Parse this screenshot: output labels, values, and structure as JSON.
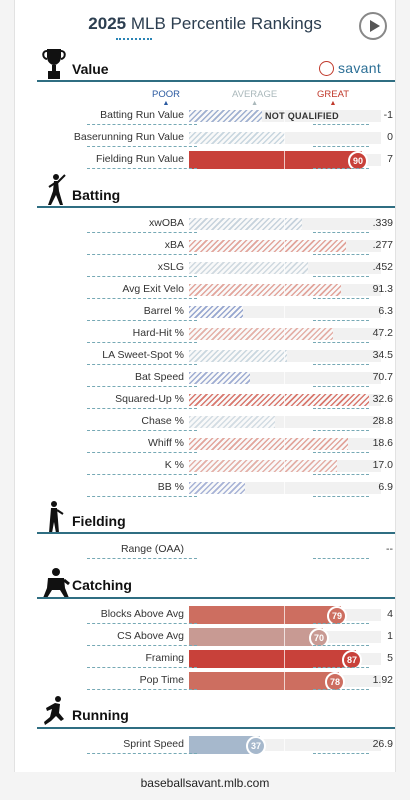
{
  "header": {
    "year": "2025",
    "title": "MLB Percentile Rankings",
    "play_icon": "play-circle-icon"
  },
  "brand": {
    "text": "savant",
    "logo": "baseball-icon"
  },
  "scale": {
    "poor": "POOR",
    "average": "AVERAGE",
    "great": "GREAT",
    "colors": {
      "poor": "#2b5aa0",
      "average": "#aab8bb",
      "great": "#c0392b"
    }
  },
  "sections": {
    "value": {
      "title": "Value",
      "icon": "trophy-icon"
    },
    "batting": {
      "title": "Batting",
      "icon": "batter-icon"
    },
    "fielding": {
      "title": "Fielding",
      "icon": "fielder-icon"
    },
    "catching": {
      "title": "Catching",
      "icon": "catcher-icon"
    },
    "running": {
      "title": "Running",
      "icon": "runner-icon"
    }
  },
  "value_rows": [
    {
      "label": "Batting Run Value",
      "value": "-1",
      "note": "NOT QUALIFIED",
      "percentile": 0.38,
      "style": "hatch",
      "color": "#9fb0d0"
    },
    {
      "label": "Baserunning Run Value",
      "value": "0",
      "percentile": 0.5,
      "style": "hatch",
      "color": "#c8d6df"
    },
    {
      "label": "Fielding Run Value",
      "value": "7",
      "percentile": 0.9,
      "badge": "90",
      "style": "solid",
      "color": "#c8413a"
    }
  ],
  "batting_rows": [
    {
      "label": "xwOBA",
      "value": ".339",
      "percentile": 0.59,
      "color": "#c6d2dc"
    },
    {
      "label": "xBA",
      "value": ".277",
      "percentile": 0.82,
      "color": "#e2a59c"
    },
    {
      "label": "xSLG",
      "value": ".452",
      "percentile": 0.62,
      "color": "#cfd9e0"
    },
    {
      "label": "Avg Exit Velo",
      "value": "91.3",
      "percentile": 0.79,
      "color": "#e2a59c"
    },
    {
      "label": "Barrel %",
      "value": "6.3",
      "percentile": 0.28,
      "color": "#96a6cf"
    },
    {
      "label": "Hard-Hit %",
      "value": "47.2",
      "percentile": 0.75,
      "color": "#e4b0a8"
    },
    {
      "label": "LA Sweet-Spot %",
      "value": "34.5",
      "percentile": 0.51,
      "color": "#cad7df"
    },
    {
      "label": "Bat Speed",
      "value": "70.7",
      "percentile": 0.32,
      "color": "#9fadd2"
    },
    {
      "label": "Squared-Up %",
      "value": "32.6",
      "percentile": 0.94,
      "color": "#d9786e"
    },
    {
      "label": "Chase %",
      "value": "28.8",
      "percentile": 0.45,
      "color": "#d2dce3"
    },
    {
      "label": "Whiff %",
      "value": "18.6",
      "percentile": 0.83,
      "color": "#e2a59c"
    },
    {
      "label": "K %",
      "value": "17.0",
      "percentile": 0.77,
      "color": "#e4b0a8"
    },
    {
      "label": "BB %",
      "value": "6.9",
      "percentile": 0.29,
      "color": "#a7b3d6"
    }
  ],
  "fielding_rows": [
    {
      "label": "Range (OAA)",
      "value": "--"
    }
  ],
  "catching_rows": [
    {
      "label": "Blocks Above Avg",
      "value": "4",
      "percentile": 0.79,
      "badge": "79",
      "color": "#cd6e60"
    },
    {
      "label": "CS Above Avg",
      "value": "1",
      "percentile": 0.7,
      "badge": "70",
      "color": "#c89a93"
    },
    {
      "label": "Framing",
      "value": "5",
      "percentile": 0.87,
      "badge": "87",
      "color": "#c8413a"
    },
    {
      "label": "Pop Time",
      "value": "1.92",
      "percentile": 0.78,
      "badge": "78",
      "color": "#cd6e60"
    }
  ],
  "running_rows": [
    {
      "label": "Sprint Speed",
      "value": "26.9",
      "percentile": 0.37,
      "badge": "37",
      "color": "#a6b8cc"
    }
  ],
  "footer": {
    "url": "baseballsavant.mlb.com"
  }
}
